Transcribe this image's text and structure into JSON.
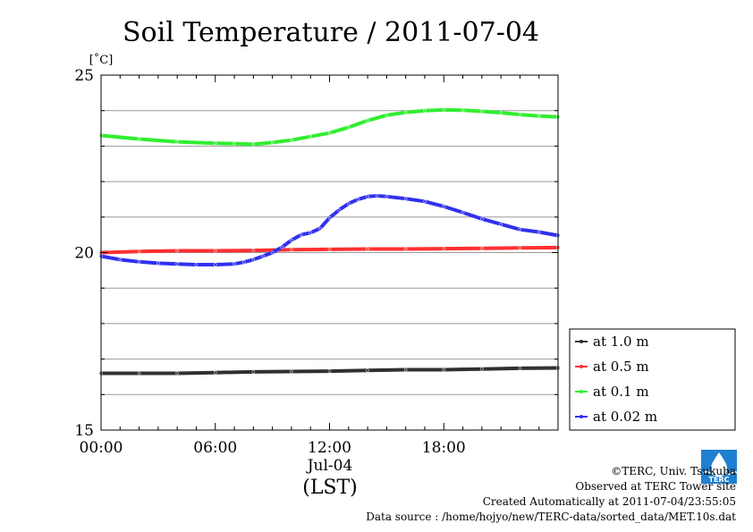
{
  "chart_data": {
    "type": "line",
    "title": "Soil Temperature / 2011-07-04",
    "ylabel": "[˚C]",
    "xlabel": "(LST)",
    "x_date_label": "Jul-04",
    "ylim": [
      15,
      25
    ],
    "yticks": [
      "15",
      "20",
      "25"
    ],
    "xlim_hours": [
      0,
      24
    ],
    "xticks": [
      {
        "h": 0,
        "label": "00:00"
      },
      {
        "h": 6,
        "label": "06:00"
      },
      {
        "h": 12,
        "label": "12:00"
      },
      {
        "h": 18,
        "label": "18:00"
      }
    ],
    "grid": true,
    "legend_position": "right, lower",
    "series": [
      {
        "name": "at 1.0 m",
        "color": "#303030",
        "points": [
          [
            0,
            16.6
          ],
          [
            2,
            16.6
          ],
          [
            4,
            16.6
          ],
          [
            6,
            16.62
          ],
          [
            8,
            16.64
          ],
          [
            10,
            16.65
          ],
          [
            12,
            16.66
          ],
          [
            14,
            16.68
          ],
          [
            16,
            16.7
          ],
          [
            18,
            16.7
          ],
          [
            20,
            16.72
          ],
          [
            22,
            16.74
          ],
          [
            24,
            16.75
          ]
        ]
      },
      {
        "name": "at 0.5 m",
        "color": "#ff3030",
        "points": [
          [
            0,
            20.0
          ],
          [
            2,
            20.03
          ],
          [
            4,
            20.05
          ],
          [
            6,
            20.05
          ],
          [
            8,
            20.06
          ],
          [
            10,
            20.08
          ],
          [
            12,
            20.09
          ],
          [
            14,
            20.1
          ],
          [
            16,
            20.1
          ],
          [
            18,
            20.11
          ],
          [
            20,
            20.12
          ],
          [
            22,
            20.13
          ],
          [
            24,
            20.14
          ]
        ]
      },
      {
        "name": "at 0.1 m",
        "color": "#30ee30",
        "points": [
          [
            0,
            23.3
          ],
          [
            2,
            23.2
          ],
          [
            4,
            23.12
          ],
          [
            6,
            23.08
          ],
          [
            7,
            23.07
          ],
          [
            8,
            23.05
          ],
          [
            9,
            23.1
          ],
          [
            10,
            23.17
          ],
          [
            11,
            23.27
          ],
          [
            12,
            23.37
          ],
          [
            13,
            23.53
          ],
          [
            14,
            23.72
          ],
          [
            15,
            23.87
          ],
          [
            16,
            23.95
          ],
          [
            17,
            24.0
          ],
          [
            18,
            24.02
          ],
          [
            19,
            24.01
          ],
          [
            20,
            23.98
          ],
          [
            21,
            23.94
          ],
          [
            22,
            23.89
          ],
          [
            23,
            23.85
          ],
          [
            24,
            23.82
          ]
        ]
      },
      {
        "name": "at 0.02 m",
        "color": "#3030ee",
        "points": [
          [
            0,
            19.9
          ],
          [
            1,
            19.8
          ],
          [
            2,
            19.74
          ],
          [
            3,
            19.7
          ],
          [
            4,
            19.68
          ],
          [
            5,
            19.66
          ],
          [
            6,
            19.66
          ],
          [
            7,
            19.68
          ],
          [
            7.5,
            19.73
          ],
          [
            8,
            19.8
          ],
          [
            8.5,
            19.9
          ],
          [
            9,
            20.0
          ],
          [
            9.5,
            20.15
          ],
          [
            10,
            20.35
          ],
          [
            10.5,
            20.5
          ],
          [
            11,
            20.56
          ],
          [
            11.5,
            20.68
          ],
          [
            12,
            20.98
          ],
          [
            12.5,
            21.2
          ],
          [
            13,
            21.38
          ],
          [
            13.5,
            21.5
          ],
          [
            14,
            21.58
          ],
          [
            14.5,
            21.6
          ],
          [
            15,
            21.58
          ],
          [
            16,
            21.52
          ],
          [
            17,
            21.44
          ],
          [
            18,
            21.3
          ],
          [
            19,
            21.13
          ],
          [
            20,
            20.95
          ],
          [
            21,
            20.8
          ],
          [
            22,
            20.65
          ],
          [
            23,
            20.58
          ],
          [
            24,
            20.48
          ]
        ]
      }
    ]
  },
  "credits": {
    "copyright": "©TERC, Univ. Tsukuba",
    "observed": "Observed at TERC Tower site",
    "created": "Created Automatically at 2011-07-04/23:55:05",
    "source": "Data source : /home/hojyo/new/TERC-data/sorted_data/MET.10s.dat"
  },
  "logo": {
    "text": "TERC",
    "color": "#1f7fd0"
  }
}
